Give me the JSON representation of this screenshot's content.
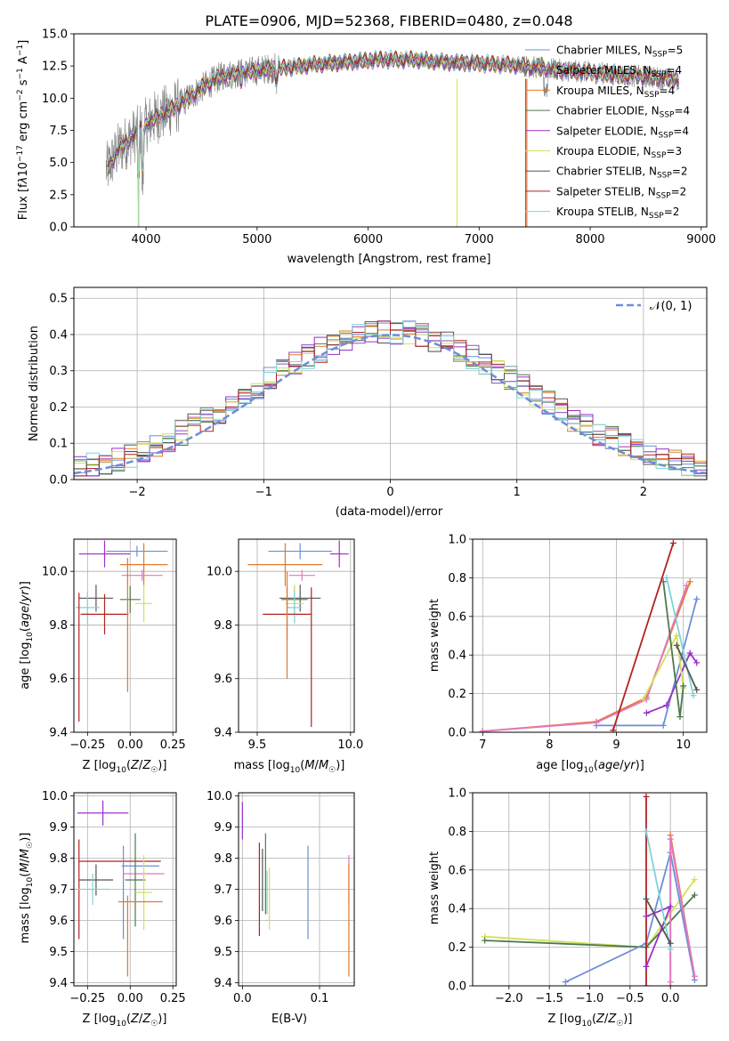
{
  "chart_data": [
    {
      "id": "spectrum",
      "type": "line",
      "title": "PLATE=0906, MJD=52368, FIBERID=0480, z=0.048",
      "xlabel": "wavelength [Angstrom, rest frame]",
      "ylabel": "Flux [f_λ 10^-17 erg cm^-2 s^-1 A^-1]",
      "xlim": [
        3350,
        9050
      ],
      "ylim": [
        0,
        15
      ],
      "xticks": [
        4000,
        5000,
        6000,
        7000,
        8000,
        9000
      ],
      "yticks": [
        "0.0",
        "2.5",
        "5.0",
        "7.5",
        "10.0",
        "12.5",
        "15.0"
      ],
      "grid": false,
      "legend_position": "right",
      "series": [
        {
          "name": "Chabrier MILES, N_SSP=5",
          "legend_base": "Chabrier MILES, N",
          "legend_sub": "SSP",
          "legend_tail": "=5",
          "color": "#6c8ed6"
        },
        {
          "name": "Salpeter MILES, N_SSP=4",
          "legend_base": "Salpeter MILES, N",
          "legend_sub": "SSP",
          "legend_tail": "=4",
          "color": "#8b4fbf"
        },
        {
          "name": "Kroupa MILES, N_SSP=4",
          "legend_base": "Kroupa MILES, N",
          "legend_sub": "SSP",
          "legend_tail": "=4",
          "color": "#e07b2a"
        },
        {
          "name": "Chabrier ELODIE, N_SSP=4",
          "legend_base": "Chabrier ELODIE, N",
          "legend_sub": "SSP",
          "legend_tail": "=4",
          "color": "#4d7a4d"
        },
        {
          "name": "Salpeter ELODIE, N_SSP=4",
          "legend_base": "Salpeter ELODIE, N",
          "legend_sub": "SSP",
          "legend_tail": "=4",
          "color": "#9b30c8"
        },
        {
          "name": "Kroupa ELODIE, N_SSP=3",
          "legend_base": "Kroupa ELODIE, N",
          "legend_sub": "SSP",
          "legend_tail": "=3",
          "color": "#d4e05a"
        },
        {
          "name": "Chabrier STELIB, N_SSP=2",
          "legend_base": "Chabrier STELIB, N",
          "legend_sub": "SSP",
          "legend_tail": "=2",
          "color": "#555555"
        },
        {
          "name": "Salpeter STELIB, N_SSP=2",
          "legend_base": "Salpeter STELIB, N",
          "legend_sub": "SSP",
          "legend_tail": "=2",
          "color": "#b22222"
        },
        {
          "name": "Kroupa STELIB, N_SSP=2",
          "legend_base": "Kroupa STELIB, N",
          "legend_sub": "SSP",
          "legend_tail": "=2",
          "color": "#7fd3d8"
        }
      ],
      "continuum": {
        "x": [
          3650,
          3750,
          3850,
          3950,
          4050,
          4150,
          4300,
          4500,
          4700,
          4900,
          5100,
          5300,
          5500,
          5800,
          6100,
          6400,
          6700,
          7000,
          7300,
          7500,
          7700,
          8000,
          8300,
          8600,
          8800
        ],
        "y": [
          4.5,
          6.0,
          6.8,
          7.5,
          8.3,
          8.8,
          9.5,
          10.8,
          11.8,
          12.0,
          12.3,
          12.4,
          12.6,
          12.8,
          13.0,
          13.0,
          12.8,
          12.7,
          12.6,
          12.4,
          12.2,
          12.0,
          11.8,
          11.6,
          11.4
        ]
      }
    },
    {
      "id": "residuals",
      "type": "step",
      "xlabel": "(data-model)/error",
      "ylabel": "Normed distribution",
      "xlim": [
        -2.5,
        2.5
      ],
      "ylim": [
        0,
        0.53
      ],
      "xticks": [
        -2,
        -1,
        0,
        1,
        2
      ],
      "yticks": [
        0.0,
        0.1,
        0.2,
        0.3,
        0.4,
        0.5
      ],
      "grid": true,
      "legend_position": "top-right",
      "legend_label": "𝒩(0, 1)",
      "reference_curve": "N(0,1) gaussian",
      "bin_width": 0.1
    },
    {
      "id": "age-vs-Z",
      "type": "errorbar",
      "xlabel": "Z [log10(Z/Z☉)]",
      "ylabel": "age [log10(age/yr)]",
      "xlim": [
        -0.33,
        0.27
      ],
      "ylim": [
        9.4,
        10.12
      ],
      "xticks": [
        -0.25,
        0.0,
        0.25
      ],
      "yticks": [
        9.4,
        9.6,
        9.8,
        10.0
      ],
      "grid": true,
      "points": [
        {
          "color": "#6c8ed6",
          "x": 0.04,
          "xerr": 0.18,
          "y": 10.075,
          "yerr": 0.02
        },
        {
          "color": "#9b30c8",
          "x": -0.15,
          "xerr": 0.15,
          "y": 10.065,
          "yerr": 0.05
        },
        {
          "color": "#e07b2a",
          "x": 0.08,
          "xerr": 0.14,
          "y": 10.025,
          "yerr": 0.08
        },
        {
          "color": "#e377c2",
          "x": 0.07,
          "xerr": 0.12,
          "y": 9.985,
          "yerr": 0.02
        },
        {
          "color": "#555555",
          "x": -0.2,
          "xerr": 0.1,
          "y": 9.9,
          "yerr": 0.05
        },
        {
          "color": "#4d7a4d",
          "x": 0.0,
          "xerr": 0.06,
          "y": 9.895,
          "yerr": 0.05
        },
        {
          "color": "#d4e05a",
          "x": 0.08,
          "xerr": 0.05,
          "y": 9.88,
          "yerr": 0.07
        },
        {
          "color": "#7fd3d8",
          "x": -0.25,
          "xerr": 0.07,
          "y": 9.865,
          "yerr": 0.06
        },
        {
          "color": "#b22222",
          "x": -0.15,
          "xerr": 0.14,
          "y": 9.84,
          "yerr": 0.075
        },
        {
          "color": "#b22222",
          "x": -0.3,
          "xerr": 0.0,
          "y": 9.68,
          "yerr": 0.24
        },
        {
          "color": "#e07b2a",
          "x": -0.015,
          "xerr": 0.0,
          "y": 9.8,
          "yerr": 0.25
        }
      ]
    },
    {
      "id": "age-vs-mass",
      "type": "errorbar",
      "xlabel": "mass [log10(M/M☉)]",
      "ylabel": "",
      "xlim": [
        9.4,
        10.02
      ],
      "ylim": [
        9.4,
        10.12
      ],
      "xticks": [
        9.5,
        10.0
      ],
      "yticks": [
        9.4,
        9.6,
        9.8,
        10.0
      ],
      "grid": true,
      "points": [
        {
          "color": "#6c8ed6",
          "x": 9.73,
          "xerr": 0.17,
          "y": 10.075,
          "yerr": 0.03
        },
        {
          "color": "#9b30c8",
          "x": 9.94,
          "xerr": 0.05,
          "y": 10.065,
          "yerr": 0.05
        },
        {
          "color": "#e07b2a",
          "x": 9.65,
          "xerr": 0.2,
          "y": 10.025,
          "yerr": 0.08
        },
        {
          "color": "#e377c2",
          "x": 9.74,
          "xerr": 0.07,
          "y": 9.985,
          "yerr": 0.02
        },
        {
          "color": "#555555",
          "x": 9.73,
          "xerr": 0.11,
          "y": 9.9,
          "yerr": 0.05
        },
        {
          "color": "#4d7a4d",
          "x": 9.7,
          "xerr": 0.07,
          "y": 9.895,
          "yerr": 0.05
        },
        {
          "color": "#d4e05a",
          "x": 9.7,
          "xerr": 0.05,
          "y": 9.88,
          "yerr": 0.07
        },
        {
          "color": "#7fd3d8",
          "x": 9.7,
          "xerr": 0.04,
          "y": 9.865,
          "yerr": 0.06
        },
        {
          "color": "#b22222",
          "x": 9.66,
          "xerr": 0.13,
          "y": 9.84,
          "yerr": 0.1
        },
        {
          "color": "#b22222",
          "x": 9.79,
          "xerr": 0.0,
          "y": 9.68,
          "yerr": 0.26
        },
        {
          "color": "#e07b2a",
          "x": 9.66,
          "xerr": 0.0,
          "y": 9.8,
          "yerr": 0.2
        }
      ]
    },
    {
      "id": "mass-weight-vs-age",
      "type": "line",
      "xlabel": "age [log10(age/yr)]",
      "ylabel": "mass weight",
      "xlim": [
        6.85,
        10.35
      ],
      "ylim": [
        0,
        1.0
      ],
      "xticks": [
        7,
        8,
        9,
        10
      ],
      "yticks": [
        0.0,
        0.2,
        0.4,
        0.6,
        0.8,
        1.0
      ],
      "grid": true,
      "series": [
        {
          "color": "#6c8ed6",
          "x": [
            8.7,
            9.7,
            10.2
          ],
          "y": [
            0.035,
            0.035,
            0.69
          ]
        },
        {
          "color": "#e07b2a",
          "x": [
            7.0,
            8.7,
            9.45,
            10.1
          ],
          "y": [
            0.005,
            0.055,
            0.18,
            0.78
          ]
        },
        {
          "color": "#e377c2",
          "x": [
            7.0,
            8.7,
            9.45,
            10.05
          ],
          "y": [
            0.005,
            0.05,
            0.17,
            0.76
          ]
        },
        {
          "color": "#b22222",
          "x": [
            8.95,
            9.85
          ],
          "y": [
            0.01,
            0.98
          ]
        },
        {
          "color": "#9b30c8",
          "x": [
            9.45,
            9.75,
            10.1,
            10.2
          ],
          "y": [
            0.1,
            0.14,
            0.41,
            0.36
          ]
        },
        {
          "color": "#d4e05a",
          "x": [
            9.4,
            9.9,
            10.0
          ],
          "y": [
            0.17,
            0.5,
            0.23
          ]
        },
        {
          "color": "#4d7a4d",
          "x": [
            9.7,
            9.95,
            10.0
          ],
          "y": [
            0.78,
            0.08,
            0.24
          ]
        },
        {
          "color": "#7fd3d8",
          "x": [
            9.75,
            10.15
          ],
          "y": [
            0.8,
            0.19
          ]
        },
        {
          "color": "#555555",
          "x": [
            9.9,
            10.2
          ],
          "y": [
            0.45,
            0.22
          ]
        }
      ]
    },
    {
      "id": "mass-vs-Z",
      "type": "errorbar",
      "xlabel": "Z [log10(Z/Z☉)]",
      "ylabel": "mass [log10(M/M☉)]",
      "xlim": [
        -0.33,
        0.27
      ],
      "ylim": [
        9.39,
        10.01
      ],
      "xticks": [
        -0.25,
        0.0,
        0.25
      ],
      "yticks": [
        9.4,
        9.5,
        9.6,
        9.7,
        9.8,
        9.9,
        10.0
      ],
      "grid": true,
      "points": [
        {
          "color": "#9b30c8",
          "x": -0.16,
          "xerr": 0.15,
          "y": 9.945,
          "yerr": 0.04
        },
        {
          "color": "#b22222",
          "x": -0.06,
          "xerr": 0.24,
          "y": 9.79,
          "yerr": 0.0
        },
        {
          "color": "#b22222",
          "x": -0.3,
          "xerr": 0.0,
          "y": 9.7,
          "yerr": 0.16
        },
        {
          "color": "#6c8ed6",
          "x": 0.06,
          "xerr": 0.11,
          "y": 9.775,
          "yerr": 0.0
        },
        {
          "color": "#6c8ed6",
          "x": -0.04,
          "xerr": 0.0,
          "y": 9.69,
          "yerr": 0.15
        },
        {
          "color": "#e377c2",
          "x": 0.08,
          "xerr": 0.12,
          "y": 9.75,
          "yerr": 0.0
        },
        {
          "color": "#555555",
          "x": -0.2,
          "xerr": 0.1,
          "y": 9.73,
          "yerr": 0.05
        },
        {
          "color": "#4d7a4d",
          "x": 0.03,
          "xerr": 0.06,
          "y": 9.73,
          "yerr": 0.15
        },
        {
          "color": "#7fd3d8",
          "x": -0.22,
          "xerr": 0.1,
          "y": 9.7,
          "yerr": 0.05
        },
        {
          "color": "#d4e05a",
          "x": 0.08,
          "xerr": 0.05,
          "y": 9.69,
          "yerr": 0.12
        },
        {
          "color": "#e07b2a",
          "x": 0.06,
          "xerr": 0.13,
          "y": 9.66,
          "yerr": 0.0
        },
        {
          "color": "#e07b2a",
          "x": -0.015,
          "xerr": 0.0,
          "y": 9.55,
          "yerr": 0.13
        }
      ]
    },
    {
      "id": "mass-vs-EBV",
      "type": "errorbar",
      "xlabel": "E(B-V)",
      "ylabel": "",
      "xlim": [
        -0.005,
        0.145
      ],
      "ylim": [
        9.39,
        10.01
      ],
      "xticks": [
        0.0,
        0.1
      ],
      "yticks": [
        9.4,
        9.5,
        9.6,
        9.7,
        9.8,
        9.9,
        10.0
      ],
      "grid": true,
      "points": [
        {
          "color": "#9b30c8",
          "x": 0.0,
          "xerr": 0.0,
          "y": 9.92,
          "yerr": 0.06
        },
        {
          "color": "#b22222",
          "x": 0.022,
          "xerr": 0.0,
          "y": 9.7,
          "yerr": 0.15
        },
        {
          "color": "#555555",
          "x": 0.026,
          "xerr": 0.0,
          "y": 9.73,
          "yerr": 0.1
        },
        {
          "color": "#4d7a4d",
          "x": 0.03,
          "xerr": 0.0,
          "y": 9.75,
          "yerr": 0.13
        },
        {
          "color": "#7fd3d8",
          "x": 0.032,
          "xerr": 0.0,
          "y": 9.69,
          "yerr": 0.07
        },
        {
          "color": "#d4e05a",
          "x": 0.035,
          "xerr": 0.0,
          "y": 9.67,
          "yerr": 0.1
        },
        {
          "color": "#6c8ed6",
          "x": 0.085,
          "xerr": 0.0,
          "y": 9.69,
          "yerr": 0.15
        },
        {
          "color": "#e377c2",
          "x": 0.138,
          "xerr": 0.0,
          "y": 9.73,
          "yerr": 0.08
        },
        {
          "color": "#e07b2a",
          "x": 0.138,
          "xerr": 0.0,
          "y": 9.6,
          "yerr": 0.18
        }
      ]
    },
    {
      "id": "mass-weight-vs-Z",
      "type": "line",
      "xlabel": "Z [log10(Z/Z☉)]",
      "ylabel": "mass weight",
      "xlim": [
        -2.45,
        0.45
      ],
      "ylim": [
        0,
        1.0
      ],
      "xticks": [
        "−2.0",
        "−1.5",
        "−1.0",
        "−0.5",
        "0.0"
      ],
      "xtick_values": [
        -2.0,
        -1.5,
        -1.0,
        -0.5,
        0.0
      ],
      "yticks": [
        0.0,
        0.2,
        0.4,
        0.6,
        0.8,
        1.0
      ],
      "grid": true,
      "series": [
        {
          "color": "#d4e05a",
          "x": [
            -2.3,
            -0.3,
            0.3
          ],
          "y": [
            0.255,
            0.2,
            0.55
          ]
        },
        {
          "color": "#4d7a4d",
          "x": [
            -2.3,
            -0.3,
            0.3
          ],
          "y": [
            0.235,
            0.2,
            0.47
          ]
        },
        {
          "color": "#6c8ed6",
          "x": [
            -1.3,
            -0.3,
            0.0,
            0.3
          ],
          "y": [
            0.02,
            0.22,
            0.69,
            0.03
          ]
        },
        {
          "color": "#b22222",
          "x": [
            -0.3,
            -0.3
          ],
          "y": [
            0.0,
            0.98
          ]
        },
        {
          "color": "#e07b2a",
          "x": [
            0.0,
            0.0,
            0.3
          ],
          "y": [
            0.0,
            0.78,
            0.05
          ]
        },
        {
          "color": "#e377c2",
          "x": [
            0.0,
            0.0,
            0.3
          ],
          "y": [
            0.02,
            0.76,
            0.05
          ]
        },
        {
          "color": "#9b30c8",
          "x": [
            -0.3,
            0.0,
            -0.3
          ],
          "y": [
            0.36,
            0.41,
            0.1
          ]
        },
        {
          "color": "#7fd3d8",
          "x": [
            -0.3,
            0.0
          ],
          "y": [
            0.8,
            0.19
          ]
        },
        {
          "color": "#555555",
          "x": [
            -0.3,
            0.0
          ],
          "y": [
            0.45,
            0.22
          ]
        }
      ]
    }
  ]
}
